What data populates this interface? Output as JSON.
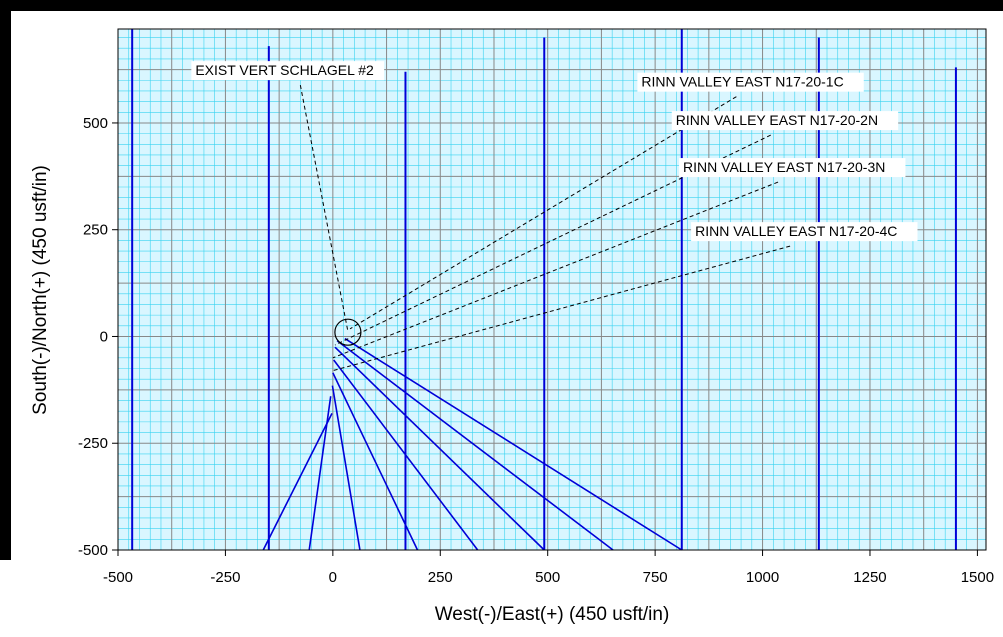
{
  "colors": {
    "frame_background": "#000000",
    "plot_background": "#d9f6ff",
    "grid_minor": "#38d3f0",
    "grid_major": "#888888",
    "wells": "#0000d8",
    "annotations": "#000000"
  },
  "chart_data": {
    "type": "line",
    "title": "",
    "xlabel": "West(-)/East(+) (450 usft/in)",
    "ylabel": "South(-)/North(+) (450 usft/in)",
    "xlim": [
      -500,
      1520
    ],
    "ylim": [
      -500,
      720
    ],
    "xticks": [
      -500,
      -250,
      0,
      250,
      500,
      750,
      1000,
      1250,
      1500
    ],
    "yticks": [
      -500,
      -250,
      0,
      250,
      500
    ],
    "x_tick_labels": [
      "-500",
      "-250",
      "0",
      "250",
      "500",
      "750",
      "1000",
      "1250",
      "1500"
    ],
    "y_tick_labels": [
      "-500",
      "-250",
      "0",
      "250",
      "500"
    ],
    "grid": true,
    "grid_minor_step": 25,
    "grid_major_step": 125,
    "vertical_wells_x": [
      -467,
      -149,
      169,
      492,
      812,
      1131,
      1450
    ],
    "vertical_wells_top_y": [
      720,
      680,
      620,
      700,
      720,
      700,
      630
    ],
    "well_paths": [
      {
        "points": [
          [
            -2,
            -180
          ],
          [
            -162,
            -500
          ]
        ]
      },
      {
        "points": [
          [
            -5,
            -140
          ],
          [
            -55,
            -500
          ]
        ]
      },
      {
        "points": [
          [
            -1,
            -115
          ],
          [
            63,
            -500
          ]
        ]
      },
      {
        "points": [
          [
            0,
            -85
          ],
          [
            197,
            -500
          ]
        ]
      },
      {
        "points": [
          [
            2,
            -55
          ],
          [
            337,
            -500
          ]
        ]
      },
      {
        "points": [
          [
            5,
            -25
          ],
          [
            492,
            -500
          ]
        ]
      },
      {
        "points": [
          [
            10,
            -10
          ],
          [
            652,
            -500
          ]
        ]
      },
      {
        "points": [
          [
            28,
            -5
          ],
          [
            812,
            -500
          ]
        ]
      }
    ],
    "surface_marker": {
      "x": 35,
      "y": 10
    },
    "annotations": [
      {
        "text": "EXIST VERT SCHLAGEL #2",
        "x": -320,
        "y": 612,
        "anchor_x": 35,
        "anchor_y": 12
      },
      {
        "text": "RINN VALLEY EAST N17-20-1C",
        "x": 718,
        "y": 585,
        "anchor_x": 40,
        "anchor_y": 18
      },
      {
        "text": "RINN VALLEY EAST N17-20-2N",
        "x": 798,
        "y": 495,
        "anchor_x": 5,
        "anchor_y": -20
      },
      {
        "text": "RINN VALLEY EAST N17-20-3N",
        "x": 815,
        "y": 385,
        "anchor_x": 0,
        "anchor_y": -50
      },
      {
        "text": "RINN VALLEY EAST N17-20-4C",
        "x": 843,
        "y": 235,
        "anchor_x": 0,
        "anchor_y": -80
      }
    ]
  }
}
